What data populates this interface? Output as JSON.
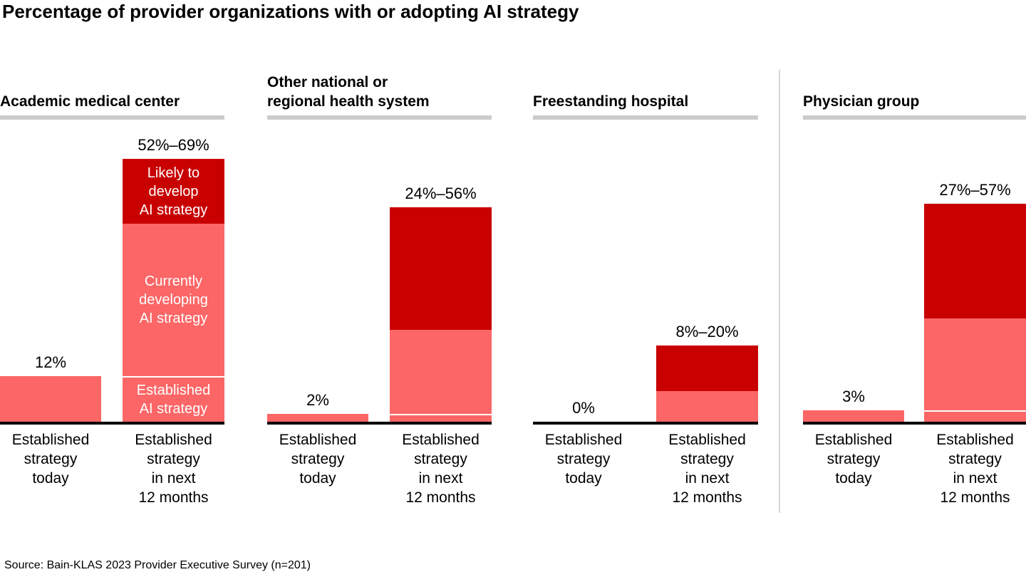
{
  "title": "Percentage of provider organizations with or adopting AI strategy",
  "source": "Source: Bain-KLAS 2023 Provider Executive Survey (n=201)",
  "colors": {
    "dark_red": "#C80000",
    "pink": "#FC6666",
    "segment_hairline": "#FFFFFF",
    "header_rule": "#CBCBCB",
    "divider": "#D6D6D6",
    "axis": "#000000",
    "text": "#000000",
    "inbar_text": "#FFFFFF"
  },
  "chart_data": {
    "type": "bar",
    "unit": "%",
    "title": "Percentage of provider organizations with or adopting AI strategy",
    "ylim": [
      0,
      69
    ],
    "grid": false,
    "legend_position": "inside-first-panel",
    "x_tick_labels": [
      "Established\nstrategy\ntoday",
      "Established\nstrategy\nin next\n12 months"
    ],
    "segment_names": [
      "Established AI strategy",
      "Currently developing AI strategy",
      "Likely to develop AI strategy"
    ],
    "panels": [
      {
        "title": "Academic medical center",
        "today": {
          "value": 12,
          "label": "12%"
        },
        "next12": {
          "label": "52%–69%",
          "total_low": 52,
          "total_high": 69,
          "segments": {
            "established": 12,
            "developing": 40,
            "likely": 17
          },
          "segment_labels": {
            "established": "Established\nAI strategy",
            "developing": "Currently\ndeveloping\nAI strategy",
            "likely": "Likely to\ndevelop\nAI strategy"
          }
        }
      },
      {
        "title": "Other national or\nregional health system",
        "today": {
          "value": 2,
          "label": "2%"
        },
        "next12": {
          "label": "24%–56%",
          "total_low": 24,
          "total_high": 56,
          "segments": {
            "established": 2,
            "developing": 22,
            "likely": 32
          }
        }
      },
      {
        "title": "Freestanding hospital",
        "today": {
          "value": 0,
          "label": "0%"
        },
        "next12": {
          "label": "8%–20%",
          "total_low": 8,
          "total_high": 20,
          "segments": {
            "established": 0,
            "developing": 8,
            "likely": 12
          }
        }
      },
      {
        "title": "Physician group",
        "today": {
          "value": 3,
          "label": "3%"
        },
        "next12": {
          "label": "27%–57%",
          "total_low": 27,
          "total_high": 57,
          "segments": {
            "established": 3,
            "developing": 24,
            "likely": 30
          }
        }
      }
    ]
  }
}
